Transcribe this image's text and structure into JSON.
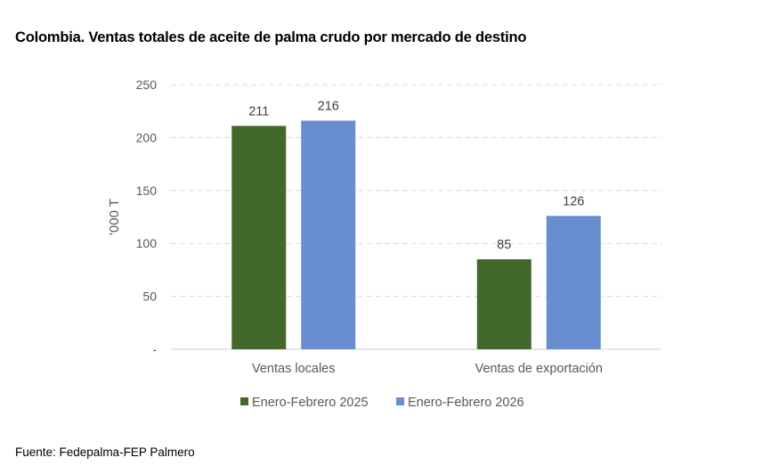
{
  "title": "Colombia. Ventas totales de aceite de palma crudo por mercado de destino",
  "source": "Fuente: Fedepalma-FEP Palmero",
  "chart_data": {
    "type": "bar",
    "title": "Colombia. Ventas totales de aceite de palma crudo por mercado de destino",
    "xlabel": "",
    "ylabel": "'000 T",
    "categories": [
      "Ventas locales",
      "Ventas de exportación"
    ],
    "series": [
      {
        "name": "Enero-Febrero 2025",
        "color": "#43682B",
        "values": [
          211,
          85
        ]
      },
      {
        "name": "Enero-Febrero 2026",
        "color": "#698ED0",
        "values": [
          216,
          126
        ]
      }
    ],
    "ylim": [
      0,
      250
    ],
    "yticks": [
      0,
      50,
      100,
      150,
      200,
      250
    ],
    "ytick_labels": [
      "-",
      "50",
      "100",
      "150",
      "200",
      "250"
    ],
    "grid": true,
    "legend_position": "bottom"
  }
}
